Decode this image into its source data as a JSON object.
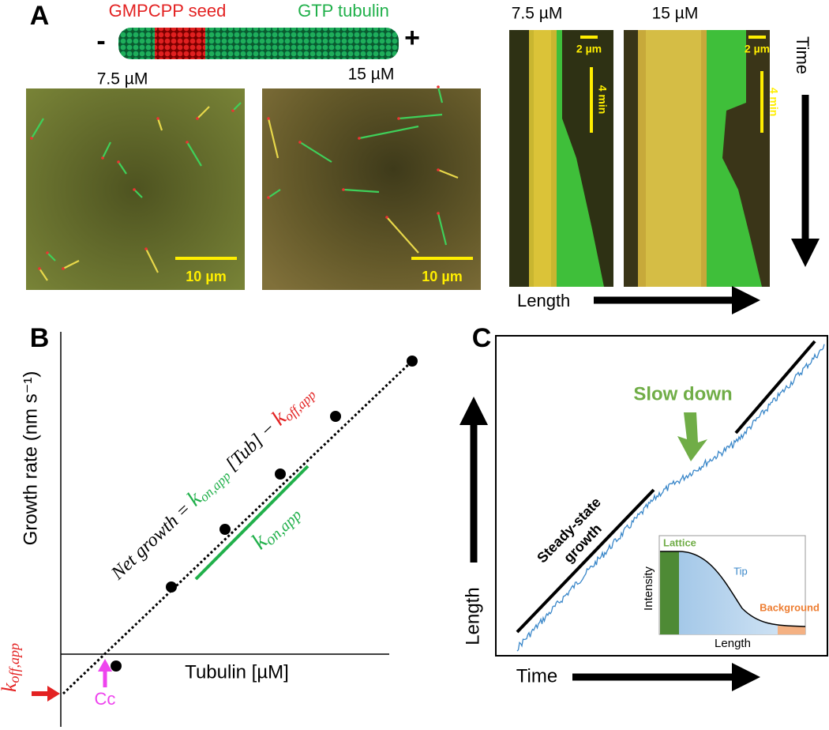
{
  "panel_a": {
    "label": "A",
    "seed_label": "GMPCPP seed",
    "tubulin_label": "GTP tubulin",
    "minus_end": "-",
    "plus_end": "+",
    "images": [
      {
        "concentration": "7.5 µM",
        "scale_bar": "10 µm"
      },
      {
        "concentration": "15 µM",
        "scale_bar": "10 µm"
      }
    ],
    "kymographs": [
      {
        "concentration": "7.5 µM",
        "length_scale": "2 µm",
        "time_scale": "4 min"
      },
      {
        "concentration": "15 µM",
        "length_scale": "2 µm",
        "time_scale": "4 min"
      }
    ],
    "time_axis": "Time",
    "length_axis": "Length"
  },
  "panel_b": {
    "label": "B",
    "y_axis": "Growth rate (nm s⁻¹)",
    "x_axis": "Tubulin [µM]",
    "equation": {
      "prefix": "Net growth = ",
      "kon": "k",
      "kon_sub": "on,app",
      "middle": " [Tub] − ",
      "koff": "k",
      "koff_sub": "off,app"
    },
    "slope_label": {
      "k": "k",
      "sub": "on,app"
    },
    "intercept_label": {
      "k": "k",
      "sub": "off,app"
    },
    "critical": "Cc"
  },
  "panel_c": {
    "label": "C",
    "annotation": "Slow down",
    "steady_state": [
      "Steady-state",
      "growth"
    ],
    "inset": {
      "lattice": "Lattice",
      "tip": "Tip",
      "background": "Background",
      "y_axis": "Intensity",
      "x_axis": "Length"
    },
    "y_axis": "Length",
    "x_axis": "Time"
  }
}
